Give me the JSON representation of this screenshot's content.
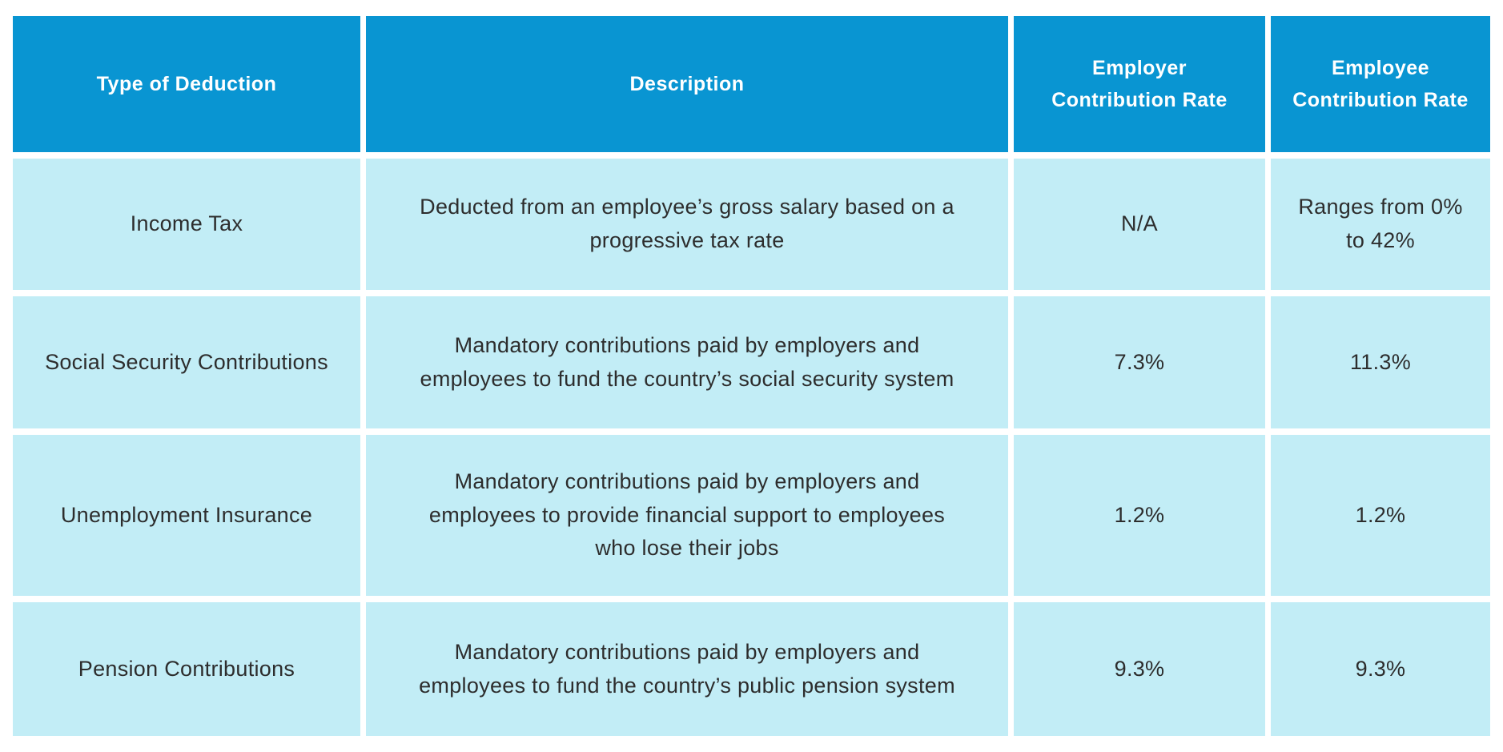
{
  "colors": {
    "header_bg": "#0995d2",
    "row_bg": "#c2edf6",
    "header_text": "#ffffff",
    "body_text": "#2d2d2d"
  },
  "table": {
    "headers": [
      "Type of Deduction",
      "Description",
      "Employer\nContribution Rate",
      "Employee\nContribution Rate"
    ],
    "rows": [
      {
        "type": "Income Tax",
        "description": "Deducted from an employee’s gross salary based on a\nprogressive tax rate",
        "employer_rate": "N/A",
        "employee_rate": "Ranges from 0%\nto 42%"
      },
      {
        "type": "Social Security Contributions",
        "description": "Mandatory contributions paid by employers and\nemployees to fund the country’s social security system",
        "employer_rate": "7.3%",
        "employee_rate": "11.3%"
      },
      {
        "type": "Unemployment Insurance",
        "description": "Mandatory contributions paid by employers and\nemployees to provide financial support to employees\nwho lose their jobs",
        "employer_rate": "1.2%",
        "employee_rate": "1.2%"
      },
      {
        "type": "Pension Contributions",
        "description": "Mandatory contributions paid by employers and\nemployees to fund the country’s public pension system",
        "employer_rate": "9.3%",
        "employee_rate": "9.3%"
      }
    ]
  }
}
